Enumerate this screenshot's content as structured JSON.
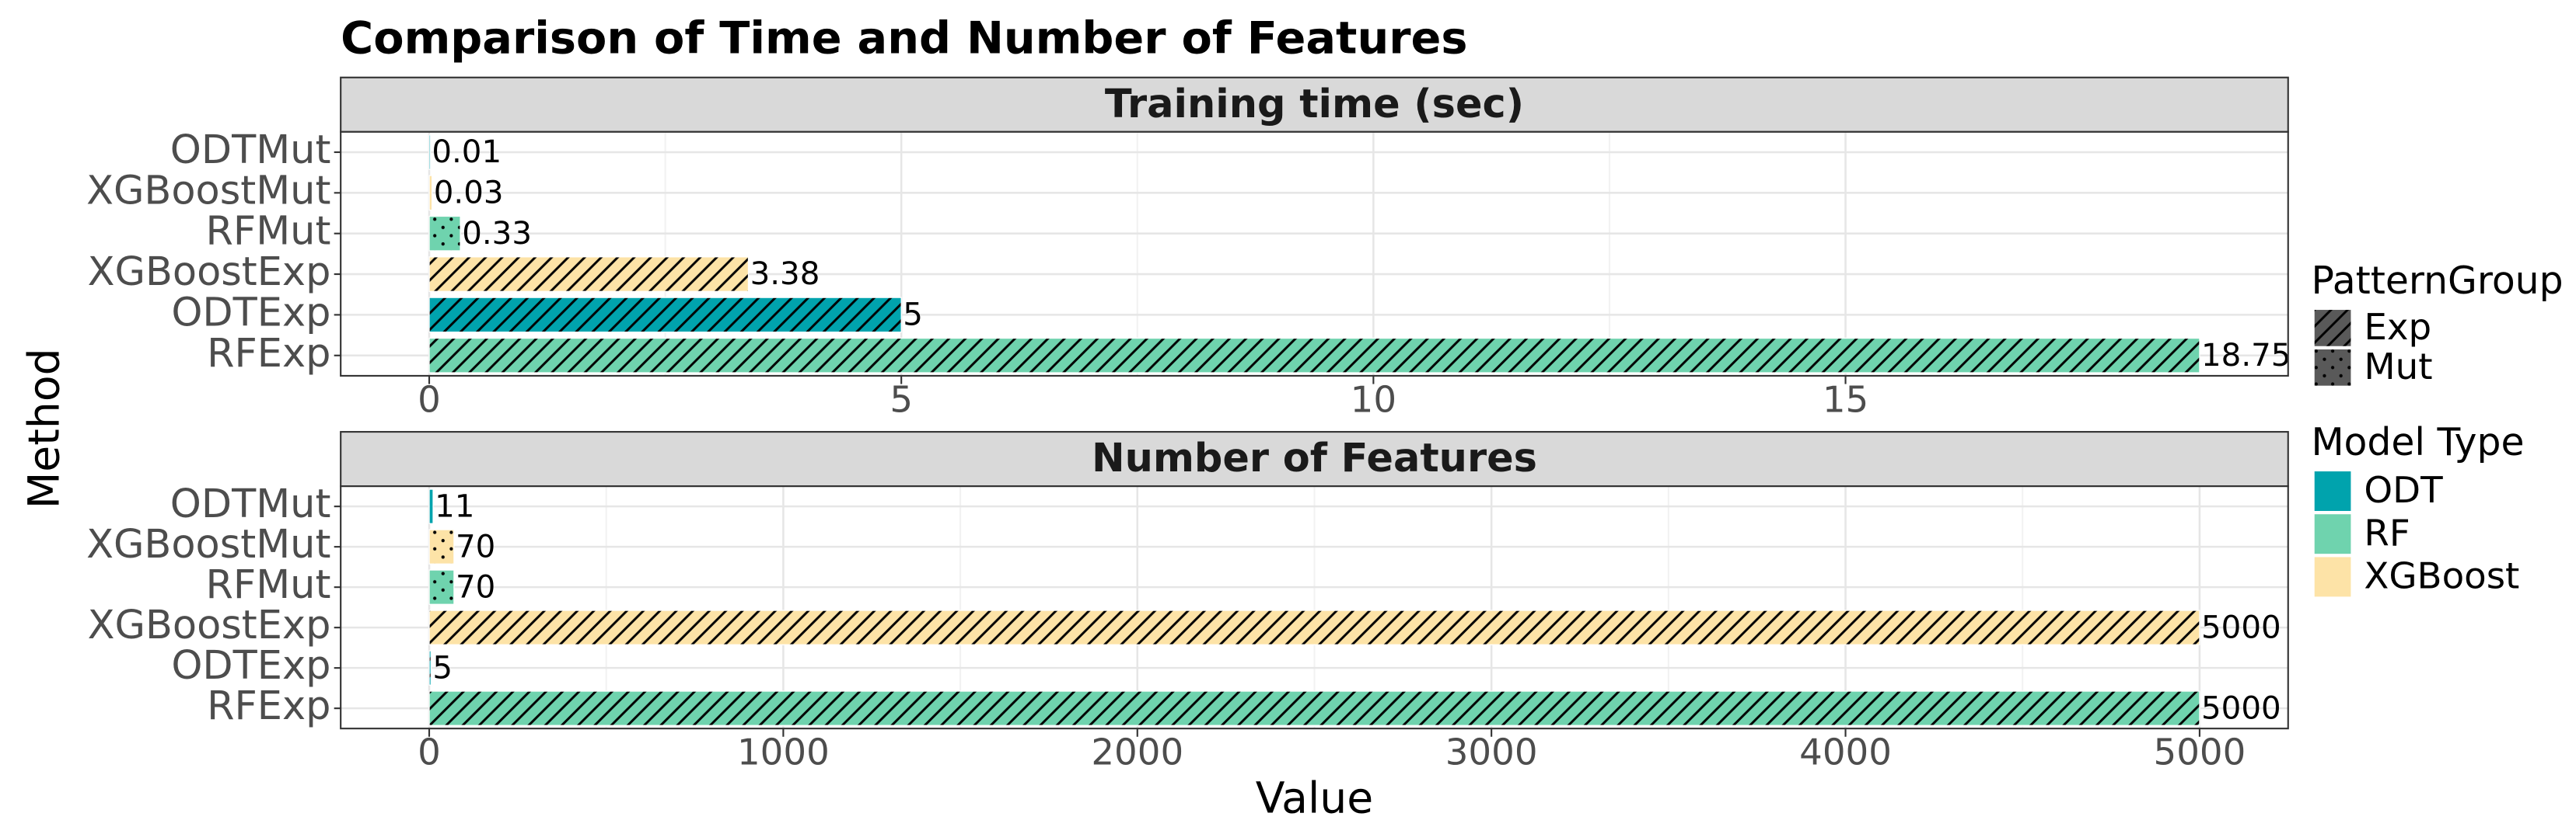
{
  "title": "Comparison of Time and Number of Features",
  "x_label": "Value",
  "y_label": "Method",
  "legends": [
    {
      "title": "PatternGroup",
      "items": [
        "Exp",
        "Mut"
      ],
      "patterns": [
        "stripe",
        "dot"
      ],
      "color": "#595959"
    },
    {
      "title": "Model Type",
      "items": [
        "ODT",
        "RF",
        "XGBoost"
      ],
      "colors": [
        "#00a3ad",
        "#6fd3ae",
        "#fde3a7"
      ]
    }
  ],
  "chart_data": [
    {
      "type": "bar",
      "orientation": "horizontal",
      "title": "Training time (sec)",
      "categories": [
        "ODTMut",
        "XGBoostMut",
        "RFMut",
        "XGBoostExp",
        "ODTExp",
        "RFExp"
      ],
      "values": [
        0.01,
        0.03,
        0.33,
        3.38,
        5,
        18.75
      ],
      "models": [
        "ODT",
        "XGBoost",
        "RF",
        "XGBoost",
        "ODT",
        "RF"
      ],
      "groups": [
        "Mut",
        "Mut",
        "Mut",
        "Exp",
        "Exp",
        "Exp"
      ],
      "xlim": [
        -0.9375,
        19.6875
      ],
      "xticks": [
        0,
        5,
        10,
        15
      ],
      "grid": true
    },
    {
      "type": "bar",
      "orientation": "horizontal",
      "title": "Number of Features",
      "categories": [
        "ODTMut",
        "XGBoostMut",
        "RFMut",
        "XGBoostExp",
        "ODTExp",
        "RFExp"
      ],
      "values": [
        11,
        70,
        70,
        5000,
        5,
        5000
      ],
      "models": [
        "ODT",
        "XGBoost",
        "RF",
        "XGBoost",
        "ODT",
        "RF"
      ],
      "groups": [
        "Mut",
        "Mut",
        "Mut",
        "Exp",
        "Exp",
        "Exp"
      ],
      "xlim": [
        -250,
        5250
      ],
      "xticks": [
        0,
        1000,
        2000,
        3000,
        4000,
        5000
      ],
      "grid": true
    }
  ]
}
